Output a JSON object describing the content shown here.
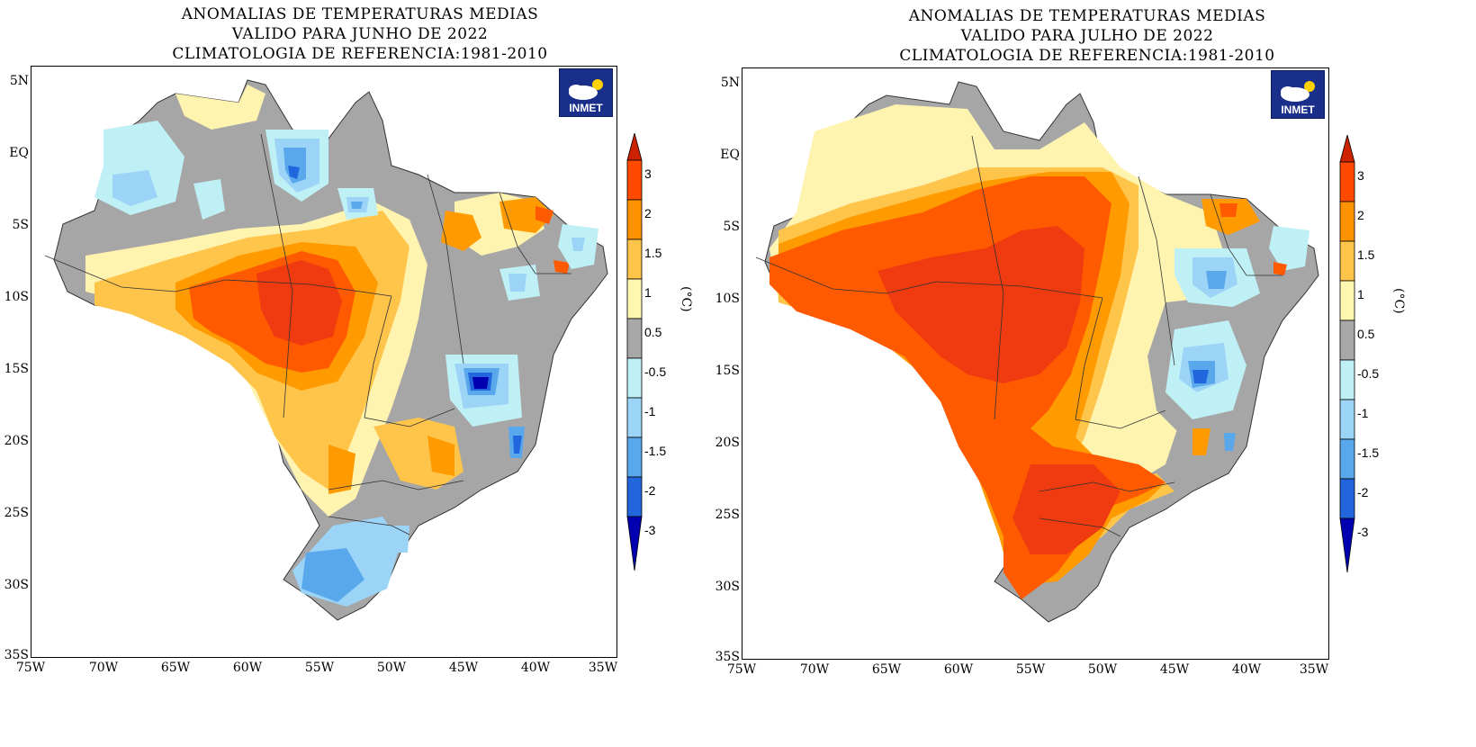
{
  "panels": [
    {
      "title_line1": "ANOMALIAS DE TEMPERATURAS MEDIAS",
      "title_line2": "VALIDO PARA JUNHO DE 2022",
      "title_line3": "CLIMATOLOGIA DE REFERENCIA:1981-2010",
      "logo_text": "INMET"
    },
    {
      "title_line1": "ANOMALIAS DE TEMPERATURAS MEDIAS",
      "title_line2": "VALIDO PARA JULHO DE 2022",
      "title_line3": "CLIMATOLOGIA DE REFERENCIA:1981-2010",
      "logo_text": "INMET"
    }
  ],
  "lat_ticks": [
    "5N",
    "EQ",
    "5S",
    "10S",
    "15S",
    "20S",
    "25S",
    "30S",
    "35S"
  ],
  "lon_ticks": [
    "75W",
    "70W",
    "65W",
    "60W",
    "55W",
    "50W",
    "45W",
    "40W",
    "35W"
  ],
  "colorbar": {
    "labels": [
      "3",
      "2",
      "1.5",
      "1",
      "0.5",
      "-0.5",
      "-1",
      "-1.5",
      "-2",
      "-3"
    ],
    "unit": "(°C)",
    "colors": [
      "#cc2200",
      "#ff4a00",
      "#ff9200",
      "#ffc44a",
      "#fff6b0",
      "#a8a8a8",
      "#bff0f5",
      "#9bd4f7",
      "#5aa8ec",
      "#2266de",
      "#0000b0"
    ]
  },
  "colors": {
    "gray": "#a6a6a6",
    "pale_yellow": "#fff3b0",
    "light_orange": "#ffc44a",
    "orange": "#ff9a00",
    "dark_orange": "#ff5a00",
    "red_orange": "#f03a10",
    "light_blue": "#bff0f5",
    "sky_blue": "#9bd4f7",
    "mid_blue": "#5aa8ec",
    "blue": "#2266de",
    "deep_blue": "#0000b0"
  }
}
